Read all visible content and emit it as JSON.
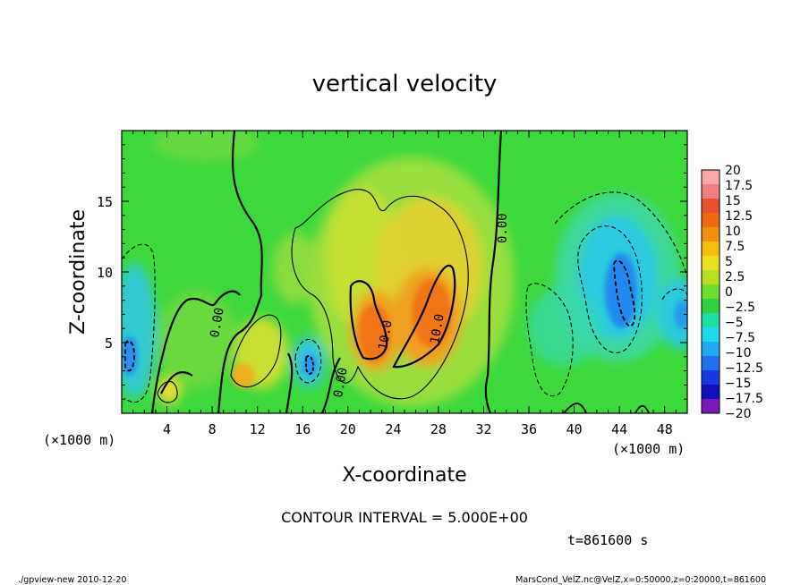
{
  "chart_data": {
    "type": "heatmap",
    "title": "vertical velocity",
    "xlabel": "X-coordinate",
    "ylabel": "Z-coordinate",
    "x_unit": "(×1000 m)",
    "x_unit_right": "(×1000 m)",
    "xlim": [
      0,
      50
    ],
    "ylim": [
      0,
      20
    ],
    "x_ticks": [
      "4",
      "8",
      "12",
      "16",
      "20",
      "24",
      "28",
      "32",
      "36",
      "40",
      "44",
      "48"
    ],
    "y_ticks": [
      "5",
      "10",
      "15"
    ],
    "colorbar": {
      "labels": [
        "20",
        "17.5",
        "15",
        "12.5",
        "10",
        "7.5",
        "5",
        "2.5",
        "0",
        "−2.5",
        "−5",
        "−7.5",
        "−10",
        "−12.5",
        "−15",
        "−17.5",
        "−20"
      ],
      "colors": [
        "#f7a8a8",
        "#f08080",
        "#e85030",
        "#ee6a10",
        "#f09010",
        "#f4be10",
        "#e8e020",
        "#b8e020",
        "#70dc30",
        "#30d040",
        "#20dca0",
        "#20d8e8",
        "#20a8f0",
        "#2070f0",
        "#1838e0",
        "#1010b8",
        "#7818b8"
      ]
    },
    "contour_labels": [
      "10.0",
      "10.0",
      "0.00",
      "0.00",
      "0.00"
    ],
    "features": [
      {
        "type": "updraft",
        "x": 22.5,
        "z": 6.5,
        "w": 11
      },
      {
        "type": "updraft",
        "x": 27.5,
        "z": 6.5,
        "w": 12
      },
      {
        "type": "updraft",
        "x": 10.8,
        "z": 3,
        "w": 8
      },
      {
        "type": "updraft",
        "x": 26,
        "z": 11,
        "w": 5
      },
      {
        "type": "downdraft",
        "x": 43.5,
        "z": 8,
        "w": -12
      },
      {
        "type": "downdraft",
        "x": 17,
        "z": 3.5,
        "w": -8
      },
      {
        "type": "downdraft",
        "x": 1.5,
        "z": 4.5,
        "w": -9
      },
      {
        "type": "downdraft",
        "x": 49.5,
        "z": 8,
        "w": -8
      }
    ]
  },
  "footer": {
    "contour_interval": "CONTOUR INTERVAL = 5.000E+00",
    "time": "t=861600 s",
    "left_note": "./gpview-new  2010-12-20",
    "right_note": "MarsCond_VelZ.nc@VelZ,x=0:50000,z=0:20000,t=861600"
  }
}
